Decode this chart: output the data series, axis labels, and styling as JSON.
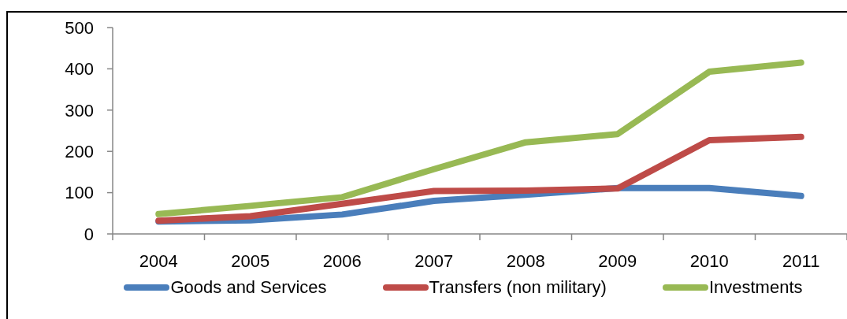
{
  "chart_data": {
    "type": "line",
    "categories": [
      "2004",
      "2005",
      "2006",
      "2007",
      "2008",
      "2009",
      "2010",
      "2011"
    ],
    "series": [
      {
        "name": "Goods and Services",
        "color": "#4a7ebb",
        "values": [
          30,
          33,
          47,
          80,
          95,
          111,
          111,
          92
        ]
      },
      {
        "name": "Transfers (non military)",
        "color": "#be4b48",
        "values": [
          32,
          43,
          73,
          104,
          105,
          110,
          227,
          235
        ]
      },
      {
        "name": "Investments",
        "color": "#98b954",
        "values": [
          48,
          68,
          89,
          157,
          222,
          242,
          393,
          415
        ]
      }
    ],
    "ylim": [
      0,
      500
    ],
    "yticks": [
      0,
      100,
      200,
      300,
      400,
      500
    ],
    "legend": "bottom",
    "line_style": "solid"
  }
}
